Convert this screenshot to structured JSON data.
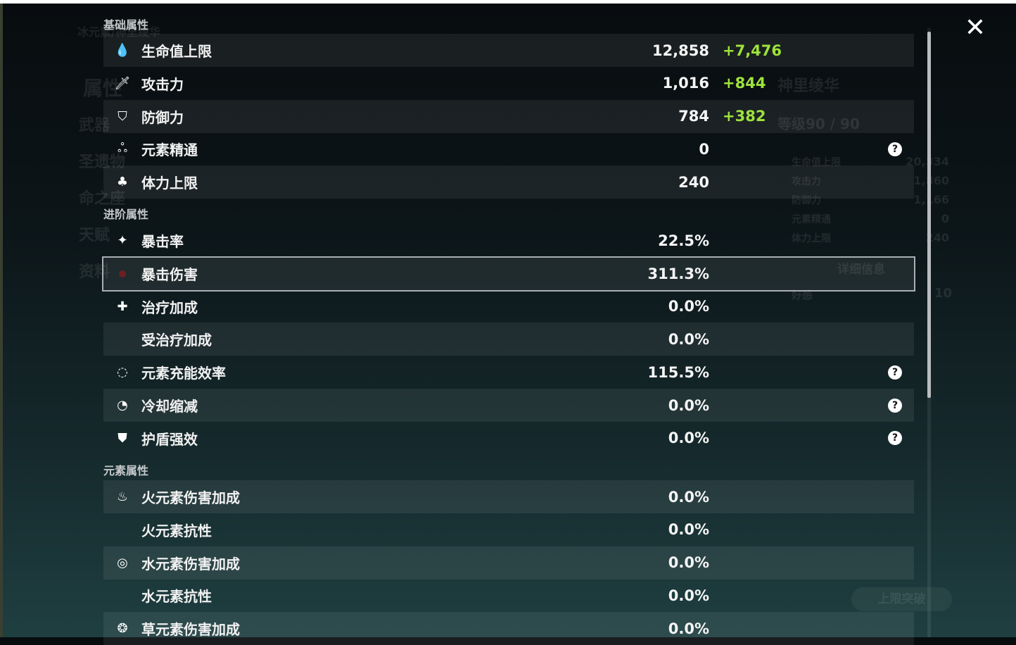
{
  "background": {
    "element_name": "冰元素/神里绫华",
    "menu": [
      "属性",
      "武器",
      "圣遗物",
      "命之座",
      "天赋",
      "资料"
    ],
    "char_name": "神里绫华",
    "level": "等级90 / 90",
    "summary": [
      {
        "label": "生命值上限",
        "value": "20,334"
      },
      {
        "label": "攻击力",
        "value": "1,860"
      },
      {
        "label": "防御力",
        "value": "1,166"
      },
      {
        "label": "元素精通",
        "value": "0"
      },
      {
        "label": "体力上限",
        "value": "240"
      }
    ],
    "details_button": "详细信息",
    "friendship": {
      "label": "好感",
      "value": "10"
    },
    "ascend_button": "上限突破"
  },
  "colors": {
    "bonus": "#9ee23c",
    "panel_row": "#1e2a2e"
  },
  "sections": [
    {
      "title": "基础属性",
      "rows": [
        {
          "icon": "droplet-icon",
          "glyph": "💧",
          "label": "生命值上限",
          "value": "12,858",
          "bonus": "+7,476",
          "help": false
        },
        {
          "icon": "sword-icon",
          "glyph": "🗡",
          "label": "攻击力",
          "value": "1,016",
          "bonus": "+844",
          "help": false
        },
        {
          "icon": "shield-icon",
          "glyph": "⛉",
          "label": "防御力",
          "value": "784",
          "bonus": "+382",
          "help": false
        },
        {
          "icon": "triple-ring-icon",
          "glyph": "ஃ",
          "label": "元素精通",
          "value": "0",
          "bonus": "",
          "help": true
        },
        {
          "icon": "stamina-icon",
          "glyph": "♣",
          "label": "体力上限",
          "value": "240",
          "bonus": "",
          "help": false
        }
      ]
    },
    {
      "title": "进阶属性",
      "rows": [
        {
          "icon": "crit-star-icon",
          "glyph": "✦",
          "label": "暴击率",
          "value": "22.5%",
          "bonus": "",
          "help": false
        },
        {
          "icon": "crit-dmg-icon",
          "glyph": "",
          "label": "暴击伤害",
          "value": "311.3%",
          "bonus": "",
          "help": false,
          "selected": true
        },
        {
          "icon": "healing-cross-icon",
          "glyph": "✚",
          "label": "治疗加成",
          "value": "0.0%",
          "bonus": "",
          "help": false
        },
        {
          "icon": "",
          "glyph": "",
          "label": "受治疗加成",
          "value": "0.0%",
          "bonus": "",
          "help": false
        },
        {
          "icon": "energy-recharge-icon",
          "glyph": "◌",
          "label": "元素充能效率",
          "value": "115.5%",
          "bonus": "",
          "help": true
        },
        {
          "icon": "cooldown-icon",
          "glyph": "◔",
          "label": "冷却缩减",
          "value": "0.0%",
          "bonus": "",
          "help": true
        },
        {
          "icon": "shield-strength-icon",
          "glyph": "⛊",
          "label": "护盾强效",
          "value": "0.0%",
          "bonus": "",
          "help": true
        }
      ]
    },
    {
      "title": "元素属性",
      "rows": [
        {
          "icon": "pyro-icon",
          "glyph": "♨",
          "label": "火元素伤害加成",
          "value": "0.0%",
          "bonus": "",
          "help": false
        },
        {
          "icon": "",
          "glyph": "",
          "label": "火元素抗性",
          "value": "0.0%",
          "bonus": "",
          "help": false
        },
        {
          "icon": "hydro-icon",
          "glyph": "◎",
          "label": "水元素伤害加成",
          "value": "0.0%",
          "bonus": "",
          "help": false
        },
        {
          "icon": "",
          "glyph": "",
          "label": "水元素抗性",
          "value": "0.0%",
          "bonus": "",
          "help": false
        },
        {
          "icon": "dendro-icon",
          "glyph": "❂",
          "label": "草元素伤害加成",
          "value": "0.0%",
          "bonus": "",
          "help": false
        }
      ]
    }
  ],
  "close_glyph": "✕",
  "help_glyph": "?"
}
